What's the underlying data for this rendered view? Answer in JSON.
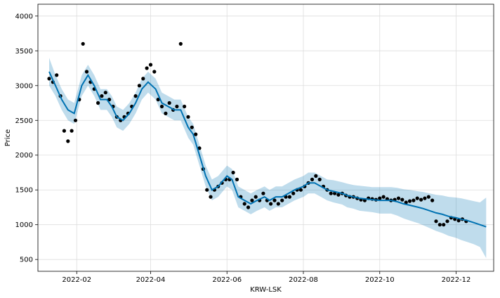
{
  "chart_data": {
    "type": "line",
    "title": "",
    "xlabel": "KRW-LSK",
    "ylabel": "Price",
    "x_range": [
      "2022-01-01",
      "2022-12-31"
    ],
    "ylim": [
      330,
      4170
    ],
    "grid": true,
    "x_ticks": [
      "2022-02",
      "2022-04",
      "2022-06",
      "2022-08",
      "2022-10",
      "2022-12"
    ],
    "y_ticks": [
      500,
      1000,
      1500,
      2000,
      2500,
      3000,
      3500,
      4000
    ],
    "colors": {
      "observed": "#000000",
      "forecast_line": "#0072b2",
      "uncertainty_band": "#0072b2"
    },
    "series": [
      {
        "kind": "forecast",
        "x": [
          "2022-01-10",
          "2022-01-15",
          "2022-01-20",
          "2022-01-25",
          "2022-01-30",
          "2022-02-05",
          "2022-02-10",
          "2022-02-15",
          "2022-02-20",
          "2022-02-25",
          "2022-03-01",
          "2022-03-05",
          "2022-03-10",
          "2022-03-15",
          "2022-03-20",
          "2022-03-25",
          "2022-03-30",
          "2022-04-05",
          "2022-04-10",
          "2022-04-15",
          "2022-04-20",
          "2022-04-25",
          "2022-05-01",
          "2022-05-05",
          "2022-05-10",
          "2022-05-15",
          "2022-05-20",
          "2022-05-25",
          "2022-06-01",
          "2022-06-05",
          "2022-06-10",
          "2022-06-15",
          "2022-06-20",
          "2022-06-25",
          "2022-07-01",
          "2022-07-05",
          "2022-07-10",
          "2022-07-15",
          "2022-07-20",
          "2022-07-25",
          "2022-08-01",
          "2022-08-05",
          "2022-08-10",
          "2022-08-15",
          "2022-08-20",
          "2022-08-25",
          "2022-09-01",
          "2022-09-05",
          "2022-09-10",
          "2022-09-15",
          "2022-09-20",
          "2022-09-25",
          "2022-10-01",
          "2022-10-05",
          "2022-10-10",
          "2022-10-15",
          "2022-10-20",
          "2022-10-25",
          "2022-11-01",
          "2022-11-05",
          "2022-11-10",
          "2022-11-15",
          "2022-11-20",
          "2022-11-25",
          "2022-12-01",
          "2022-12-05",
          "2022-12-10",
          "2022-12-15",
          "2022-12-20",
          "2022-12-25"
        ],
        "y": [
          3200,
          3000,
          2800,
          2650,
          2600,
          3000,
          3150,
          3000,
          2800,
          2800,
          2700,
          2550,
          2500,
          2600,
          2750,
          2950,
          3050,
          2950,
          2750,
          2700,
          2650,
          2650,
          2400,
          2300,
          2000,
          1700,
          1500,
          1550,
          1700,
          1650,
          1400,
          1350,
          1300,
          1350,
          1400,
          1350,
          1400,
          1400,
          1450,
          1500,
          1550,
          1600,
          1600,
          1550,
          1500,
          1480,
          1450,
          1420,
          1400,
          1380,
          1370,
          1360,
          1350,
          1350,
          1350,
          1330,
          1300,
          1280,
          1250,
          1230,
          1200,
          1170,
          1150,
          1120,
          1100,
          1080,
          1060,
          1030,
          1000,
          970
        ],
        "upper": [
          3400,
          3150,
          2950,
          2800,
          2750,
          3150,
          3300,
          3150,
          2950,
          2950,
          2850,
          2700,
          2650,
          2750,
          2900,
          3100,
          3200,
          3100,
          2900,
          2850,
          2800,
          2800,
          2550,
          2450,
          2150,
          1850,
          1650,
          1700,
          1850,
          1800,
          1550,
          1500,
          1450,
          1500,
          1550,
          1500,
          1550,
          1550,
          1600,
          1650,
          1700,
          1750,
          1750,
          1700,
          1650,
          1640,
          1610,
          1590,
          1570,
          1560,
          1550,
          1540,
          1540,
          1540,
          1540,
          1530,
          1510,
          1500,
          1480,
          1470,
          1450,
          1430,
          1420,
          1400,
          1390,
          1380,
          1360,
          1340,
          1320,
          1390
        ],
        "lower": [
          3000,
          2850,
          2650,
          2500,
          2450,
          2850,
          3000,
          2850,
          2650,
          2650,
          2550,
          2400,
          2350,
          2450,
          2600,
          2800,
          2900,
          2800,
          2600,
          2550,
          2500,
          2500,
          2250,
          2150,
          1850,
          1550,
          1350,
          1400,
          1550,
          1500,
          1250,
          1200,
          1150,
          1200,
          1250,
          1200,
          1250,
          1250,
          1300,
          1350,
          1400,
          1450,
          1450,
          1400,
          1350,
          1320,
          1290,
          1250,
          1230,
          1200,
          1190,
          1180,
          1160,
          1160,
          1160,
          1130,
          1090,
          1060,
          1020,
          990,
          950,
          910,
          880,
          840,
          810,
          780,
          750,
          720,
          680,
          520
        ]
      },
      {
        "kind": "observed",
        "x": [
          "2022-01-10",
          "2022-01-13",
          "2022-01-16",
          "2022-01-19",
          "2022-01-22",
          "2022-01-25",
          "2022-01-28",
          "2022-01-31",
          "2022-02-03",
          "2022-02-06",
          "2022-02-09",
          "2022-02-12",
          "2022-02-15",
          "2022-02-18",
          "2022-02-21",
          "2022-02-24",
          "2022-02-27",
          "2022-03-02",
          "2022-03-05",
          "2022-03-08",
          "2022-03-11",
          "2022-03-14",
          "2022-03-17",
          "2022-03-20",
          "2022-03-23",
          "2022-03-26",
          "2022-03-29",
          "2022-04-01",
          "2022-04-04",
          "2022-04-07",
          "2022-04-10",
          "2022-04-13",
          "2022-04-16",
          "2022-04-19",
          "2022-04-22",
          "2022-04-25",
          "2022-04-28",
          "2022-05-01",
          "2022-05-04",
          "2022-05-07",
          "2022-05-10",
          "2022-05-13",
          "2022-05-16",
          "2022-05-19",
          "2022-05-22",
          "2022-05-25",
          "2022-05-28",
          "2022-05-31",
          "2022-06-03",
          "2022-06-06",
          "2022-06-09",
          "2022-06-12",
          "2022-06-15",
          "2022-06-18",
          "2022-06-21",
          "2022-06-24",
          "2022-06-27",
          "2022-06-30",
          "2022-07-03",
          "2022-07-06",
          "2022-07-09",
          "2022-07-12",
          "2022-07-15",
          "2022-07-18",
          "2022-07-21",
          "2022-07-24",
          "2022-07-27",
          "2022-07-30",
          "2022-08-02",
          "2022-08-05",
          "2022-08-08",
          "2022-08-11",
          "2022-08-14",
          "2022-08-17",
          "2022-08-20",
          "2022-08-23",
          "2022-08-26",
          "2022-08-29",
          "2022-09-01",
          "2022-09-04",
          "2022-09-07",
          "2022-09-10",
          "2022-09-13",
          "2022-09-16",
          "2022-09-19",
          "2022-09-22",
          "2022-09-25",
          "2022-09-28",
          "2022-10-01",
          "2022-10-04",
          "2022-10-07",
          "2022-10-10",
          "2022-10-13",
          "2022-10-16",
          "2022-10-19",
          "2022-10-22",
          "2022-10-25",
          "2022-10-28",
          "2022-10-31",
          "2022-11-03",
          "2022-11-06",
          "2022-11-09",
          "2022-11-12",
          "2022-11-15",
          "2022-11-18",
          "2022-11-21",
          "2022-11-24",
          "2022-11-27",
          "2022-11-30",
          "2022-12-03",
          "2022-12-06",
          "2022-12-09"
        ],
        "y": [
          3100,
          3050,
          3150,
          2850,
          2350,
          2200,
          2350,
          2500,
          2800,
          3600,
          3200,
          3050,
          2950,
          2750,
          2850,
          2900,
          2800,
          2700,
          2550,
          2500,
          2550,
          2600,
          2700,
          2850,
          3000,
          3100,
          3250,
          3300,
          3200,
          2800,
          2700,
          2600,
          2750,
          2650,
          2700,
          3600,
          2700,
          2550,
          2400,
          2300,
          2100,
          1800,
          1500,
          1400,
          1500,
          1550,
          1600,
          1650,
          1650,
          1750,
          1650,
          1400,
          1300,
          1250,
          1350,
          1400,
          1350,
          1450,
          1350,
          1300,
          1350,
          1300,
          1350,
          1400,
          1400,
          1450,
          1500,
          1500,
          1550,
          1600,
          1650,
          1700,
          1650,
          1550,
          1500,
          1450,
          1450,
          1430,
          1450,
          1420,
          1400,
          1400,
          1380,
          1360,
          1350,
          1380,
          1370,
          1360,
          1380,
          1400,
          1370,
          1350,
          1360,
          1380,
          1360,
          1320,
          1340,
          1350,
          1380,
          1360,
          1380,
          1400,
          1350,
          1050,
          1000,
          1000,
          1050,
          1100,
          1080,
          1060,
          1080,
          1050
        ]
      }
    ]
  }
}
